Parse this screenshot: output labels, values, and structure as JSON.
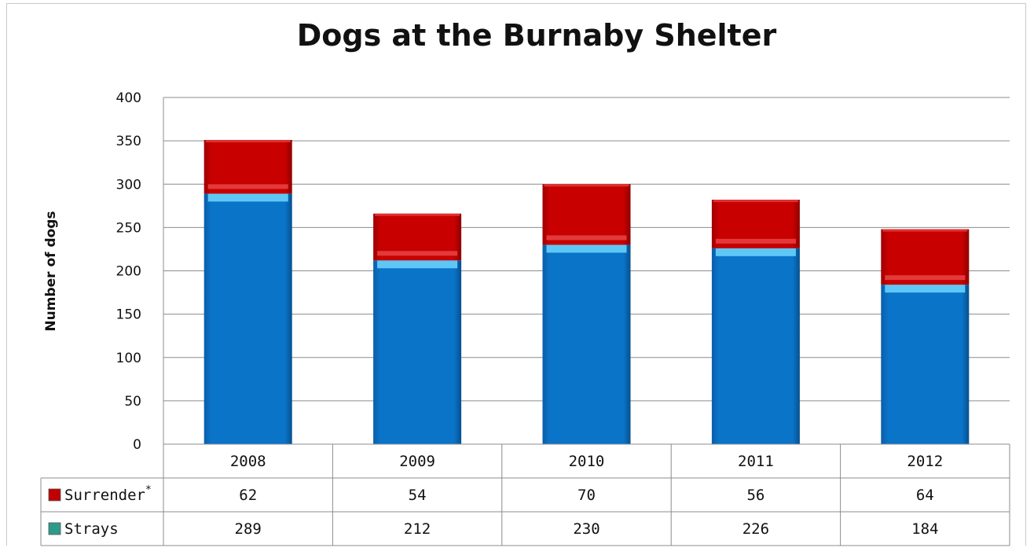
{
  "chart_data": {
    "type": "bar",
    "stacked": true,
    "title": "Dogs at the Burnaby Shelter",
    "xlabel": "",
    "ylabel": "Number of dogs",
    "ylim": [
      0,
      400
    ],
    "yticks": [
      0,
      50,
      100,
      150,
      200,
      250,
      300,
      350,
      400
    ],
    "grid": true,
    "legend": "data-table",
    "categories": [
      "2008",
      "2009",
      "2010",
      "2011",
      "2012"
    ],
    "series": [
      {
        "name": "Surrender",
        "name_suffix": "*",
        "values": [
          62,
          54,
          70,
          56,
          64
        ],
        "color": "#c00000"
      },
      {
        "name": "Strays",
        "values": [
          289,
          212,
          230,
          226,
          184
        ],
        "color": "#0070c0"
      }
    ]
  }
}
